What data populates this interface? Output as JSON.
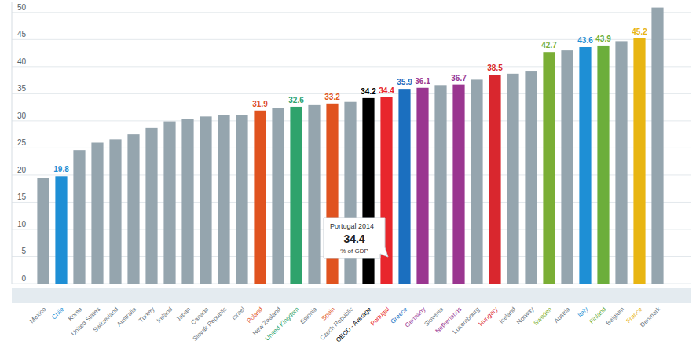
{
  "chart_data": {
    "type": "bar",
    "categories": [
      "Mexico",
      "Chile",
      "Korea",
      "United States",
      "Switzerland",
      "Australia",
      "Turkey",
      "Ireland",
      "Japan",
      "Canada",
      "Slovak Republic",
      "Israel",
      "Poland",
      "New Zealand",
      "United Kingdom",
      "Estonia",
      "Spain",
      "Czech Republic",
      "OECD - Average",
      "Portugal",
      "Greece",
      "Germany",
      "Slovenia",
      "Netherlands",
      "Luxembourg",
      "Hungary",
      "Iceland",
      "Norway",
      "Sweden",
      "Austria",
      "Italy",
      "Finland",
      "Belgium",
      "France",
      "Denmark"
    ],
    "values": [
      19.5,
      19.8,
      24.6,
      26.0,
      26.6,
      27.5,
      28.7,
      29.9,
      30.3,
      30.8,
      31.0,
      31.1,
      31.9,
      32.4,
      32.6,
      32.9,
      33.2,
      33.5,
      34.2,
      34.4,
      35.9,
      36.1,
      36.6,
      36.7,
      37.6,
      38.5,
      38.7,
      39.1,
      42.7,
      43.0,
      43.6,
      43.9,
      44.7,
      45.2,
      50.9
    ],
    "value_labels": [
      null,
      "19.8",
      null,
      null,
      null,
      null,
      null,
      null,
      null,
      null,
      null,
      null,
      "31.9",
      null,
      "32.6",
      null,
      "33.2",
      null,
      "34.2",
      "34.4",
      "35.9",
      "36.1",
      null,
      "36.7",
      null,
      "38.5",
      null,
      null,
      "42.7",
      null,
      "43.6",
      "43.9",
      null,
      "45.2",
      null
    ],
    "color": "#95a5ae",
    "colors": [
      "#95a5ae",
      "#1e8fd5",
      "#95a5ae",
      "#95a5ae",
      "#95a5ae",
      "#95a5ae",
      "#95a5ae",
      "#95a5ae",
      "#95a5ae",
      "#95a5ae",
      "#95a5ae",
      "#95a5ae",
      "#e0531f",
      "#95a5ae",
      "#2fa36c",
      "#95a5ae",
      "#e0531f",
      "#95a5ae",
      "#000000",
      "#e8262c",
      "#1b6fbf",
      "#9a3690",
      "#95a5ae",
      "#9a3690",
      "#95a5ae",
      "#d9272e",
      "#95a5ae",
      "#95a5ae",
      "#7aae35",
      "#95a5ae",
      "#1e8fd5",
      "#6cae3b",
      "#95a5ae",
      "#e8b512",
      "#95a5ae"
    ],
    "ylim": [
      0,
      52
    ],
    "yticks": [
      0,
      5,
      10,
      15,
      20,
      25,
      30,
      35,
      40,
      45,
      50
    ],
    "grid": true,
    "data_labels": true,
    "annotations": [
      {
        "x": "Portugal",
        "title": "Portugal 2014",
        "value": 34.4,
        "unit": "% of GDP"
      }
    ]
  }
}
